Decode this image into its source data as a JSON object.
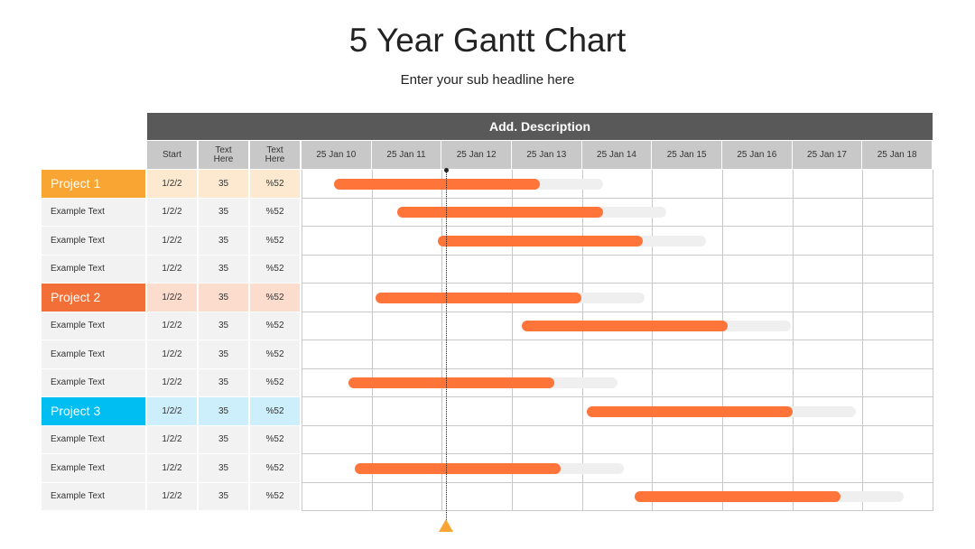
{
  "chart_data": {
    "type": "gantt",
    "title": "5 Year Gantt Chart",
    "subtitle": "Enter your sub headline here",
    "header": "Add. Description",
    "columns": [
      "Start",
      "Text Here",
      "Text Here"
    ],
    "categories": [
      "25 Jan 10",
      "25 Jan 11",
      "25 Jan 12",
      "25 Jan 13",
      "25 Jan 14",
      "25 Jan 15",
      "25 Jan 16",
      "25 Jan 17",
      "25 Jan 18"
    ],
    "marker": 2.06,
    "bar_color": "#ff7539",
    "track_color": "#efefef",
    "marker_color": "#f9a533",
    "rows": [
      {
        "label": "Project 1",
        "color": "#f9a533",
        "cell_color": "#fde9cf",
        "cells": [
          "1/2/2",
          "35",
          "%52"
        ],
        "start": 0.46,
        "end": 3.4,
        "track_end": 4.3
      },
      {
        "label": "Example Text",
        "cells": [
          "1/2/2",
          "35",
          "%52"
        ],
        "start": 1.36,
        "end": 4.3,
        "track_end": 5.2
      },
      {
        "label": "Example Text",
        "cells": [
          "1/2/2",
          "35",
          "%52"
        ],
        "start": 1.94,
        "end": 4.87,
        "track_end": 5.77
      },
      {
        "label": "Example Text",
        "cells": [
          "1/2/2",
          "35",
          "%52"
        ]
      },
      {
        "label": "Project 2",
        "color": "#f36f38",
        "cell_color": "#fcdccd",
        "cells": [
          "1/2/2",
          "35",
          "%52"
        ],
        "start": 1.06,
        "end": 3.99,
        "track_end": 4.89
      },
      {
        "label": "Example Text",
        "cells": [
          "1/2/2",
          "35",
          "%52"
        ],
        "start": 3.14,
        "end": 6.08,
        "track_end": 6.98
      },
      {
        "label": "Example Text",
        "cells": [
          "1/2/2",
          "35",
          "%52"
        ]
      },
      {
        "label": "Example Text",
        "cells": [
          "1/2/2",
          "35",
          "%52"
        ],
        "start": 0.67,
        "end": 3.6,
        "track_end": 4.51
      },
      {
        "label": "Project 3",
        "color": "#00bdf2",
        "cell_color": "#cdeefb",
        "cells": [
          "1/2/2",
          "35",
          "%52"
        ],
        "start": 4.07,
        "end": 7.0,
        "track_end": 7.91
      },
      {
        "label": "Example Text",
        "cells": [
          "1/2/2",
          "35",
          "%52"
        ]
      },
      {
        "label": "Example Text",
        "cells": [
          "1/2/2",
          "35",
          "%52"
        ],
        "start": 0.76,
        "end": 3.7,
        "track_end": 4.6
      },
      {
        "label": "Example Text",
        "cells": [
          "1/2/2",
          "35",
          "%52"
        ],
        "start": 4.75,
        "end": 7.69,
        "track_end": 8.59
      }
    ]
  }
}
